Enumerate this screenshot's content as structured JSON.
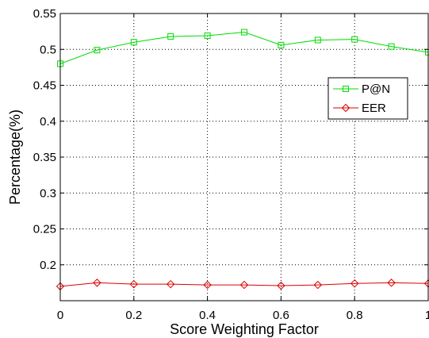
{
  "chart_data": {
    "type": "line",
    "title": "",
    "xlabel": "Score Weighting Factor",
    "ylabel": "Percentage(%)",
    "xlim": [
      0,
      1
    ],
    "ylim": [
      0.15,
      0.55
    ],
    "x_ticks": [
      0,
      0.2,
      0.4,
      0.6,
      0.8,
      1
    ],
    "x_tick_labels": [
      "0",
      "0.2",
      "0.4",
      "0.6",
      "0.8",
      "1"
    ],
    "y_ticks": [
      0.2,
      0.25,
      0.3,
      0.35,
      0.4,
      0.45,
      0.5,
      0.55
    ],
    "y_tick_labels": [
      "0.2",
      "0.25",
      "0.3",
      "0.35",
      "0.4",
      "0.45",
      "0.5",
      "0.55"
    ],
    "grid": true,
    "legend_position": "right",
    "x": [
      0,
      0.1,
      0.2,
      0.3,
      0.4,
      0.5,
      0.6,
      0.7,
      0.8,
      0.9,
      1.0
    ],
    "series": [
      {
        "name": "P@N",
        "marker": "square",
        "color": "#00dd00",
        "values": [
          0.48,
          0.499,
          0.51,
          0.518,
          0.519,
          0.524,
          0.506,
          0.513,
          0.514,
          0.504,
          0.496
        ]
      },
      {
        "name": "EER",
        "marker": "diamond",
        "color": "#dd0000",
        "values": [
          0.17,
          0.175,
          0.173,
          0.173,
          0.172,
          0.172,
          0.171,
          0.172,
          0.174,
          0.175,
          0.174
        ]
      }
    ]
  }
}
